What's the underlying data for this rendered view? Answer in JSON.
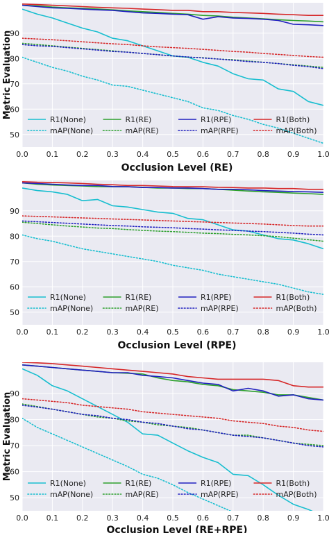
{
  "chart_data": [
    {
      "type": "line",
      "xlabel": "Occlusion Level (RE)",
      "ylabel": "Metric Evaluation",
      "xlim": [
        0.0,
        1.0
      ],
      "ylim": [
        45,
        102
      ],
      "xticks": [
        "0.0",
        "0.1",
        "0.2",
        "0.3",
        "0.4",
        "0.5",
        "0.6",
        "0.7",
        "0.8",
        "0.9",
        "1.0"
      ],
      "yticks": [
        50,
        60,
        70,
        80,
        90
      ],
      "grid": true,
      "legend_position": "lower-center, 4 columns",
      "x": [
        0.0,
        0.05,
        0.1,
        0.15,
        0.2,
        0.25,
        0.3,
        0.35,
        0.4,
        0.45,
        0.5,
        0.55,
        0.6,
        0.65,
        0.7,
        0.75,
        0.8,
        0.85,
        0.9,
        0.95,
        1.0
      ],
      "series": [
        {
          "name": "R1(None)",
          "color": "#17becf",
          "style": "solid",
          "values": [
            99.5,
            97.5,
            96,
            94,
            92,
            90.5,
            88,
            87,
            85,
            83,
            81,
            80.5,
            78.5,
            77,
            74,
            72,
            71.5,
            68,
            67,
            63,
            61.5
          ]
        },
        {
          "name": "R1(RE)",
          "color": "#2ca02c",
          "style": "solid",
          "values": [
            101,
            100.8,
            100.3,
            100,
            99.8,
            99.5,
            99.2,
            98.8,
            98.5,
            98.2,
            97.8,
            97.5,
            97,
            96.8,
            96.3,
            96,
            95.7,
            95.3,
            95,
            94.8,
            94.5
          ]
        },
        {
          "name": "R1(RPE)",
          "color": "#1f1fbf",
          "style": "solid",
          "values": [
            101,
            100.5,
            100,
            99.8,
            99.5,
            99.2,
            99,
            98.5,
            98,
            97.8,
            97.5,
            97.3,
            95.5,
            96.5,
            96,
            95.8,
            95.5,
            95,
            93.5,
            93.3,
            93
          ]
        },
        {
          "name": "R1(Both)",
          "color": "#d62728",
          "style": "solid",
          "values": [
            101.5,
            101.3,
            101,
            100.8,
            100.5,
            100.2,
            100,
            99.8,
            99.5,
            99.3,
            99,
            99,
            98.5,
            98.5,
            98.2,
            98,
            97.8,
            97.5,
            97.3,
            97,
            97
          ]
        },
        {
          "name": "mAP(None)",
          "color": "#17becf",
          "style": "dotted",
          "values": [
            80.5,
            78.5,
            76.5,
            75,
            73,
            71.5,
            69.5,
            69,
            67.5,
            66,
            64.5,
            63,
            60.5,
            59.5,
            57.5,
            56,
            54,
            52.5,
            50.5,
            48.5,
            46.5
          ]
        },
        {
          "name": "mAP(RE)",
          "color": "#2ca02c",
          "style": "dotted",
          "values": [
            86,
            85.5,
            85,
            84.5,
            84,
            83.5,
            83,
            82.5,
            82,
            81.5,
            81,
            80.5,
            80.3,
            79.8,
            79.5,
            79,
            78.5,
            78,
            77.5,
            77,
            76.5
          ]
        },
        {
          "name": "mAP(RPE)",
          "color": "#1f1fbf",
          "style": "dotted",
          "values": [
            85.5,
            85,
            84.8,
            84.3,
            83.8,
            83.3,
            82.8,
            82.5,
            82,
            81.5,
            81,
            80.6,
            80.2,
            79.8,
            79.3,
            78.8,
            78.5,
            78,
            77.3,
            76.8,
            76
          ]
        },
        {
          "name": "mAP(Both)",
          "color": "#d62728",
          "style": "dotted",
          "values": [
            88,
            87.7,
            87.4,
            87,
            86.6,
            86.2,
            85.8,
            85.5,
            85,
            84.6,
            84.3,
            84,
            83.6,
            83.2,
            82.8,
            82.5,
            82,
            81.6,
            81.2,
            80.8,
            80.5
          ]
        }
      ]
    },
    {
      "type": "line",
      "xlabel": "Occlusion Level (RPE)",
      "ylabel": "",
      "xlim": [
        0.0,
        1.0
      ],
      "ylim": [
        45,
        102
      ],
      "xticks": [
        "0.0",
        "0.1",
        "0.2",
        "0.3",
        "0.4",
        "0.5",
        "0.6",
        "0.7",
        "0.8",
        "0.9",
        "1.0"
      ],
      "yticks": [
        50,
        60,
        70,
        80,
        90
      ],
      "grid": true,
      "legend_position": "lower-center, 4 columns",
      "x": [
        0.0,
        0.05,
        0.1,
        0.15,
        0.2,
        0.25,
        0.3,
        0.35,
        0.4,
        0.45,
        0.5,
        0.55,
        0.6,
        0.65,
        0.7,
        0.75,
        0.8,
        0.85,
        0.9,
        0.95,
        1.0
      ],
      "series": [
        {
          "name": "R1(None)",
          "color": "#17becf",
          "style": "solid",
          "values": [
            99,
            98,
            97.5,
            96.5,
            94,
            94.5,
            92,
            91.5,
            90.5,
            89.5,
            89,
            87,
            86.5,
            84.5,
            82.5,
            82,
            80.5,
            79,
            78.5,
            77,
            75
          ]
        },
        {
          "name": "R1(RE)",
          "color": "#2ca02c",
          "style": "solid",
          "values": [
            101,
            100.5,
            100.2,
            100,
            99.8,
            99.6,
            99.5,
            99.5,
            99.3,
            99,
            99,
            98.8,
            98.8,
            98.5,
            98.2,
            97.8,
            97.5,
            97.3,
            97,
            96.8,
            96.5
          ]
        },
        {
          "name": "R1(RPE)",
          "color": "#1f1fbf",
          "style": "solid",
          "values": [
            101,
            100.8,
            100.5,
            100.2,
            100,
            100,
            99.6,
            99.5,
            99.2,
            99.2,
            99,
            99,
            98.8,
            98.5,
            98.5,
            98.3,
            98,
            97.8,
            97.6,
            97.5,
            97.3
          ]
        },
        {
          "name": "R1(Both)",
          "color": "#d62728",
          "style": "solid",
          "values": [
            101.5,
            101.3,
            101.2,
            101,
            100.8,
            100.5,
            100.3,
            100,
            100,
            99.8,
            99.6,
            99.5,
            99.5,
            99.3,
            99.2,
            99,
            99,
            98.8,
            98.8,
            98.5,
            98.5
          ]
        },
        {
          "name": "mAP(None)",
          "color": "#17becf",
          "style": "dotted",
          "values": [
            80.5,
            79,
            78,
            76.5,
            75,
            74,
            73,
            72,
            71,
            70,
            68.5,
            67.5,
            66.5,
            65,
            64,
            63,
            62,
            61,
            59.5,
            58,
            57
          ]
        },
        {
          "name": "mAP(RE)",
          "color": "#2ca02c",
          "style": "dotted",
          "values": [
            85.5,
            85,
            84.5,
            84,
            83.6,
            83.2,
            83,
            82.6,
            82.3,
            82,
            81.8,
            81.5,
            81.2,
            81,
            80.7,
            80.5,
            80.2,
            79.8,
            79.2,
            78.6,
            78
          ]
        },
        {
          "name": "mAP(RPE)",
          "color": "#1f1fbf",
          "style": "dotted",
          "values": [
            86,
            85.7,
            85.4,
            85.1,
            84.8,
            84.5,
            84.2,
            84,
            83.7,
            83.5,
            83.3,
            83,
            82.8,
            82.5,
            82.3,
            82,
            81.8,
            81.5,
            81.2,
            80.8,
            80.5
          ]
        },
        {
          "name": "mAP(Both)",
          "color": "#d62728",
          "style": "dotted",
          "values": [
            88,
            87.8,
            87.6,
            87.4,
            87.2,
            87,
            86.8,
            86.6,
            86.4,
            86.2,
            86,
            85.8,
            85.6,
            85.4,
            85.2,
            85,
            84.8,
            84.5,
            84.2,
            84,
            84
          ]
        }
      ]
    },
    {
      "type": "line",
      "xlabel": "Occlusion Level (RE+RPE)",
      "ylabel": "Metric Evaluation",
      "xlim": [
        0.0,
        1.0
      ],
      "ylim": [
        45,
        102
      ],
      "xticks": [
        "0.0",
        "0.1",
        "0.2",
        "0.3",
        "0.4",
        "0.5",
        "0.6",
        "0.7",
        "0.8",
        "0.9",
        "1.0"
      ],
      "yticks": [
        50,
        60,
        70,
        80,
        90
      ],
      "grid": true,
      "legend_position": "lower-center, 4 columns",
      "x": [
        0.0,
        0.05,
        0.1,
        0.15,
        0.2,
        0.25,
        0.3,
        0.35,
        0.4,
        0.45,
        0.5,
        0.55,
        0.6,
        0.65,
        0.7,
        0.75,
        0.8,
        0.85,
        0.9,
        0.95,
        1.0
      ],
      "series": [
        {
          "name": "R1(None)",
          "color": "#17becf",
          "style": "solid",
          "values": [
            99.5,
            97,
            93,
            91,
            88,
            85,
            82,
            79,
            74.5,
            74,
            71,
            68,
            65.5,
            63.5,
            59,
            58.5,
            55,
            51,
            47.5,
            45.5,
            43
          ]
        },
        {
          "name": "R1(RE)",
          "color": "#2ca02c",
          "style": "solid",
          "values": [
            101,
            100.5,
            100,
            99.5,
            99,
            98.5,
            98,
            97.8,
            97.5,
            96,
            95,
            94.5,
            93.5,
            93,
            91.5,
            91,
            90.5,
            89.5,
            89.5,
            88.5,
            87.5
          ]
        },
        {
          "name": "R1(RPE)",
          "color": "#1f1fbf",
          "style": "solid",
          "values": [
            101,
            100.5,
            100,
            99.5,
            99,
            98.5,
            98,
            98,
            97,
            96.5,
            96,
            95,
            94,
            93.5,
            91,
            92,
            91,
            89,
            89.5,
            88,
            87.5
          ]
        },
        {
          "name": "R1(Both)",
          "color": "#d62728",
          "style": "solid",
          "values": [
            102,
            101.8,
            101.5,
            101,
            100.5,
            100,
            99.5,
            99,
            98.5,
            98,
            97.5,
            96.5,
            96,
            95.5,
            95.5,
            95.5,
            95.5,
            95,
            93,
            92.5,
            92.5
          ]
        },
        {
          "name": "mAP(None)",
          "color": "#17becf",
          "style": "dotted",
          "values": [
            80.5,
            77,
            74.5,
            72,
            69.5,
            67,
            64.5,
            62,
            59,
            57.5,
            55,
            52,
            49.5,
            47,
            44.5,
            43,
            42.5,
            42,
            41.5,
            41,
            40.5
          ]
        },
        {
          "name": "mAP(RE)",
          "color": "#2ca02c",
          "style": "dotted",
          "values": [
            86,
            85,
            84,
            83,
            82,
            81,
            80.5,
            79.5,
            79,
            78,
            77.5,
            77,
            76,
            75,
            74,
            74,
            73,
            72,
            71,
            70.5,
            70
          ]
        },
        {
          "name": "mAP(RPE)",
          "color": "#1f1fbf",
          "style": "dotted",
          "values": [
            85.5,
            84.8,
            84,
            83,
            82,
            81.5,
            80.5,
            80,
            79,
            78.5,
            77.5,
            76.5,
            76,
            75,
            74,
            73.5,
            73,
            72,
            71,
            70,
            69.5
          ]
        },
        {
          "name": "mAP(Both)",
          "color": "#d62728",
          "style": "dotted",
          "values": [
            88,
            87.5,
            87,
            86.5,
            85.5,
            85,
            84.5,
            84,
            83,
            82.5,
            82,
            81.5,
            81,
            80.5,
            79.5,
            79,
            78.5,
            77.5,
            77,
            76,
            75.5
          ]
        }
      ]
    }
  ]
}
